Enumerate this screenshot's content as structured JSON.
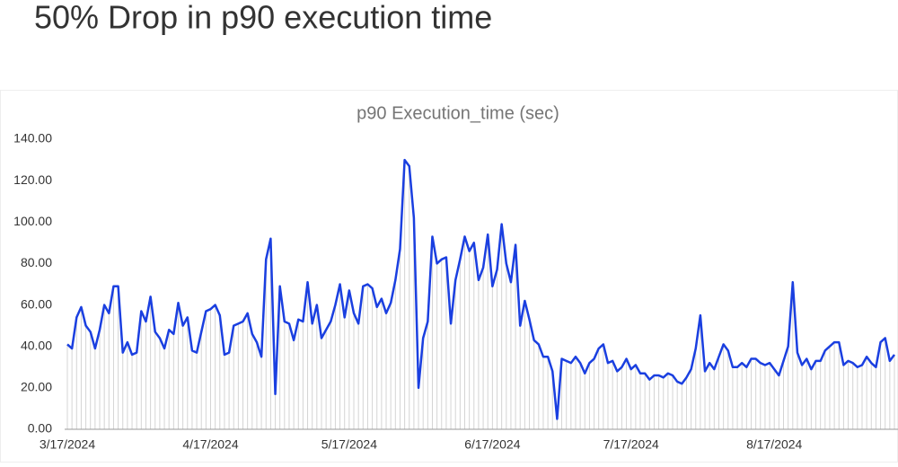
{
  "title": "50% Drop in p90 execution time",
  "chart_data": {
    "type": "line",
    "title": "p90 Execution_time (sec)",
    "categories": [
      "3/17/2024",
      null,
      null,
      null,
      null,
      null,
      null,
      null,
      null,
      null,
      null,
      null,
      null,
      null,
      null,
      null,
      null,
      null,
      null,
      null,
      null,
      null,
      null,
      null,
      null,
      null,
      null,
      null,
      null,
      null,
      null,
      "4/17/2024",
      null,
      null,
      null,
      null,
      null,
      null,
      null,
      null,
      null,
      null,
      null,
      null,
      null,
      null,
      null,
      null,
      null,
      null,
      null,
      null,
      null,
      null,
      null,
      null,
      null,
      null,
      null,
      null,
      null,
      "5/17/2024",
      null,
      null,
      null,
      null,
      null,
      null,
      null,
      null,
      null,
      null,
      null,
      null,
      null,
      null,
      null,
      null,
      null,
      null,
      null,
      null,
      null,
      null,
      null,
      null,
      null,
      null,
      null,
      null,
      null,
      null,
      "6/17/2024",
      null,
      null,
      null,
      null,
      null,
      null,
      null,
      null,
      null,
      null,
      null,
      null,
      null,
      null,
      null,
      null,
      null,
      null,
      null,
      null,
      null,
      null,
      null,
      null,
      null,
      null,
      null,
      null,
      null,
      "7/17/2024",
      null,
      null,
      null,
      null,
      null,
      null,
      null,
      null,
      null,
      null,
      null,
      null,
      null,
      null,
      null,
      null,
      null,
      null,
      null,
      null,
      null,
      null,
      null,
      null,
      null,
      null,
      null,
      null,
      null,
      null,
      "8/17/2024",
      null,
      null,
      null,
      null,
      null,
      null,
      null,
      null,
      null,
      null,
      null,
      null,
      null,
      null,
      null,
      null,
      null,
      null,
      null,
      null,
      null,
      null,
      null,
      null,
      null,
      null
    ],
    "values": [
      41,
      39,
      54,
      59,
      50,
      47,
      39,
      48,
      60,
      56,
      69,
      69,
      37,
      42,
      36,
      37,
      57,
      52,
      64,
      47,
      44,
      39,
      48,
      46,
      61,
      50,
      54,
      38,
      37,
      47,
      57,
      58,
      60,
      55,
      36,
      37,
      50,
      51,
      52,
      56,
      46,
      42,
      35,
      82,
      92,
      17,
      69,
      52,
      51,
      43,
      53,
      52,
      71,
      51,
      60,
      44,
      48,
      52,
      60,
      70,
      54,
      67,
      56,
      51,
      69,
      70,
      68,
      59,
      63,
      56,
      61,
      72,
      87,
      130,
      127,
      102,
      20,
      44,
      52,
      93,
      80,
      82,
      83,
      51,
      72,
      82,
      93,
      86,
      90,
      72,
      78,
      94,
      69,
      77,
      99,
      80,
      71,
      89,
      50,
      62,
      53,
      43,
      41,
      35,
      35,
      28,
      5,
      34,
      33,
      32,
      35,
      32,
      27,
      32,
      34,
      39,
      41,
      32,
      33,
      28,
      30,
      34,
      29,
      31,
      27,
      27,
      24,
      26,
      26,
      25,
      27,
      26,
      23,
      22,
      25,
      29,
      39,
      55,
      28,
      32,
      29,
      35,
      41,
      38,
      30,
      30,
      32,
      30,
      34,
      34,
      32,
      31,
      32,
      29,
      26,
      33,
      40,
      71,
      37,
      31,
      34,
      29,
      33,
      33,
      38,
      40,
      42,
      42,
      31,
      33,
      32,
      30,
      31,
      35,
      32,
      30,
      42,
      44,
      33,
      36
    ],
    "color": "#1a3fe0",
    "ylim": [
      0,
      140
    ],
    "yticks": [
      {
        "value": 0,
        "label": "0.00"
      },
      {
        "value": 20,
        "label": "20.00"
      },
      {
        "value": 40,
        "label": "40.00"
      },
      {
        "value": 60,
        "label": "60.00"
      },
      {
        "value": 80,
        "label": "80.00"
      },
      {
        "value": 100,
        "label": "100.00"
      },
      {
        "value": 120,
        "label": "120.00"
      },
      {
        "value": 140,
        "label": "140.00"
      }
    ],
    "grid": false
  }
}
